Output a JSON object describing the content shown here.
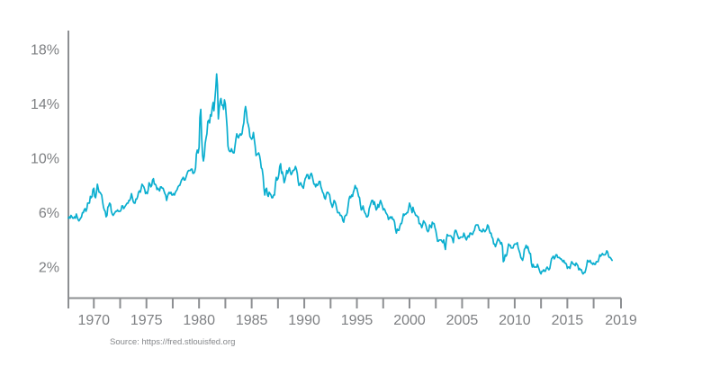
{
  "page": {
    "background": "#ffffff"
  },
  "chart_data": {
    "type": "line",
    "title": "",
    "xlabel": "",
    "ylabel": "",
    "grid": false,
    "legend": null,
    "source_text": "Source: https://fred.stlouisfed.org",
    "line_color": "#0aaecf",
    "axis_color": "#8d8f92",
    "label_color": "#7d7f82",
    "xlim": [
      1967.583,
      2020.1
    ],
    "ylim": [
      -0.28,
      19.39
    ],
    "yticks": [
      {
        "value": 18,
        "label": "18%"
      },
      {
        "value": 14,
        "label": "14%"
      },
      {
        "value": 10,
        "label": "10%"
      },
      {
        "value": 6,
        "label": "6%"
      },
      {
        "value": 2,
        "label": "2%"
      }
    ],
    "xticks": [
      {
        "year": 1967.583,
        "label": ""
      },
      {
        "year": 1970,
        "label": "1970"
      },
      {
        "year": 1972.5,
        "label": ""
      },
      {
        "year": 1975,
        "label": "1975"
      },
      {
        "year": 1977.5,
        "label": ""
      },
      {
        "year": 1980,
        "label": "1980"
      },
      {
        "year": 1982.5,
        "label": ""
      },
      {
        "year": 1985,
        "label": "1985"
      },
      {
        "year": 1987.5,
        "label": ""
      },
      {
        "year": 1990,
        "label": "1990"
      },
      {
        "year": 1992.5,
        "label": ""
      },
      {
        "year": 1995,
        "label": "1995"
      },
      {
        "year": 1997.5,
        "label": ""
      },
      {
        "year": 2000,
        "label": "2000"
      },
      {
        "year": 2002.5,
        "label": ""
      },
      {
        "year": 2005,
        "label": "2005"
      },
      {
        "year": 2007.5,
        "label": ""
      },
      {
        "year": 2010,
        "label": "2010"
      },
      {
        "year": 2012.5,
        "label": ""
      },
      {
        "year": 2015,
        "label": "2015"
      },
      {
        "year": 2017.5,
        "label": ""
      },
      {
        "year": 2020.1,
        "label": "2019"
      }
    ],
    "x_start": 1967.583,
    "x_step_years": 0.0833333,
    "unit": "percent",
    "values": [
      5.6,
      5.7,
      5.6,
      5.8,
      5.7,
      5.6,
      5.6,
      5.7,
      5.6,
      5.9,
      5.7,
      5.5,
      5.4,
      5.5,
      5.6,
      5.7,
      6.0,
      6.0,
      6.2,
      6.3,
      6.1,
      6.3,
      6.7,
      6.7,
      6.7,
      7.2,
      7.1,
      7.2,
      7.7,
      7.8,
      7.2,
      7.1,
      7.5,
      8.1,
      7.8,
      7.5,
      7.5,
      7.4,
      7.3,
      6.8,
      6.4,
      6.2,
      6.1,
      5.7,
      5.8,
      6.4,
      6.5,
      6.7,
      6.6,
      6.1,
      5.9,
      5.8,
      5.9,
      6.0,
      6.1,
      6.1,
      6.2,
      6.1,
      6.1,
      6.1,
      6.2,
      6.5,
      6.5,
      6.3,
      6.4,
      6.5,
      6.6,
      6.7,
      6.7,
      6.9,
      6.9,
      7.1,
      7.4,
      7.1,
      6.8,
      6.7,
      6.7,
      7.0,
      7.0,
      7.2,
      7.5,
      7.6,
      7.5,
      7.8,
      8.1,
      8.0,
      7.9,
      7.7,
      7.4,
      7.5,
      7.4,
      7.7,
      8.2,
      8.1,
      7.9,
      8.0,
      8.4,
      8.5,
      8.1,
      8.1,
      8.0,
      7.7,
      7.8,
      7.7,
      7.6,
      7.9,
      7.9,
      7.8,
      7.8,
      7.6,
      7.4,
      7.3,
      6.9,
      7.2,
      7.4,
      7.5,
      7.4,
      7.5,
      7.3,
      7.3,
      7.4,
      7.3,
      7.5,
      7.6,
      7.7,
      7.9,
      8.0,
      8.0,
      8.2,
      8.4,
      8.5,
      8.6,
      8.4,
      8.4,
      8.6,
      8.8,
      9.0,
      9.1,
      9.1,
      9.1,
      9.2,
      9.2,
      8.9,
      8.9,
      9.0,
      9.3,
      10.3,
      10.6,
      10.4,
      10.8,
      13.0,
      13.6,
      11.5,
      10.2,
      9.8,
      10.2,
      11.1,
      11.5,
      11.8,
      12.7,
      12.8,
      12.6,
      13.2,
      13.1,
      13.7,
      14.1,
      13.5,
      14.3,
      15.1,
      16.2,
      15.4,
      12.9,
      13.7,
      14.2,
      14.4,
      13.9,
      13.9,
      13.6,
      14.3,
      14.0,
      13.1,
      12.3,
      10.9,
      10.6,
      10.5,
      10.5,
      10.7,
      10.5,
      10.4,
      10.4,
      10.9,
      11.4,
      11.8,
      11.6,
      11.5,
      11.7,
      11.8,
      11.7,
      11.8,
      12.3,
      12.6,
      13.4,
      13.8,
      13.4,
      12.7,
      12.5,
      12.2,
      11.6,
      11.5,
      11.4,
      11.5,
      11.9,
      11.4,
      10.9,
      10.2,
      10.3,
      10.3,
      10.4,
      10.2,
      9.8,
      9.3,
      9.2,
      8.7,
      7.8,
      7.3,
      7.7,
      7.8,
      7.3,
      7.2,
      7.5,
      7.4,
      7.3,
      7.1,
      7.1,
      7.3,
      7.3,
      8.0,
      8.6,
      8.4,
      8.5,
      8.8,
      9.4,
      9.6,
      8.9,
      9.0,
      8.7,
      8.2,
      8.4,
      8.7,
      9.1,
      8.9,
      9.1,
      9.3,
      9.0,
      8.8,
      8.9,
      9.1,
      9.1,
      9.2,
      9.4,
      9.2,
      8.9,
      8.3,
      8.0,
      8.1,
      8.2,
      8.0,
      7.9,
      7.8,
      8.2,
      8.5,
      8.6,
      8.8,
      8.8,
      8.5,
      8.5,
      8.8,
      8.9,
      8.7,
      8.4,
      8.1,
      8.1,
      7.9,
      8.1,
      8.0,
      8.1,
      8.3,
      8.3,
      7.9,
      7.7,
      7.5,
      7.4,
      7.1,
      7.0,
      7.3,
      7.5,
      7.5,
      7.4,
      7.3,
      6.8,
      6.6,
      6.4,
      6.6,
      6.9,
      6.8,
      6.6,
      6.3,
      6.0,
      6.0,
      6.0,
      5.8,
      5.8,
      5.7,
      5.4,
      5.3,
      5.7,
      5.8,
      5.8,
      6.0,
      6.5,
      7.0,
      7.2,
      7.1,
      7.3,
      7.2,
      7.5,
      7.7,
      8.0,
      7.8,
      7.8,
      7.5,
      7.2,
      7.1,
      6.6,
      6.2,
      6.3,
      6.5,
      6.2,
      6.0,
      5.9,
      5.7,
      5.7,
      5.8,
      6.3,
      6.5,
      6.7,
      6.9,
      6.9,
      6.6,
      6.8,
      6.5,
      6.2,
      6.3,
      6.6,
      6.4,
      6.7,
      6.9,
      6.7,
      6.5,
      6.2,
      6.3,
      6.2,
      6.0,
      5.9,
      5.8,
      5.5,
      5.6,
      5.7,
      5.6,
      5.7,
      5.5,
      5.5,
      5.3,
      4.8,
      4.5,
      4.8,
      4.7,
      4.7,
      5.0,
      5.2,
      5.2,
      5.5,
      5.9,
      5.8,
      5.9,
      5.9,
      6.0,
      6.0,
      6.3,
      6.7,
      6.5,
      6.3,
      6.0,
      6.4,
      6.1,
      6.0,
      5.8,
      5.8,
      5.7,
      5.7,
      5.2,
      5.2,
      5.1,
      4.9,
      5.1,
      5.4,
      5.3,
      5.2,
      5.0,
      4.7,
      4.6,
      4.7,
      5.1,
      5.0,
      4.9,
      5.3,
      5.2,
      5.2,
      4.9,
      4.7,
      4.3,
      3.9,
      3.9,
      4.0,
      4.0,
      4.0,
      3.9,
      3.8,
      4.0,
      3.6,
      3.3,
      4.0,
      4.4,
      4.3,
      4.3,
      4.3,
      4.3,
      4.2,
      4.1,
      3.8,
      4.4,
      4.7,
      4.7,
      4.5,
      4.3,
      4.1,
      4.1,
      4.2,
      4.2,
      4.2,
      4.2,
      4.5,
      4.3,
      4.1,
      4.0,
      4.2,
      4.3,
      4.2,
      4.5,
      4.5,
      4.4,
      4.4,
      4.6,
      4.7,
      5.0,
      5.1,
      5.1,
      5.1,
      4.9,
      4.7,
      4.7,
      4.6,
      4.6,
      4.8,
      4.7,
      4.6,
      4.7,
      4.8,
      5.1,
      5.0,
      4.7,
      4.5,
      4.5,
      4.2,
      4.1,
      3.7,
      3.7,
      3.5,
      3.7,
      3.9,
      4.1,
      4.0,
      3.9,
      3.7,
      3.8,
      3.5,
      2.4,
      2.5,
      2.9,
      2.8,
      2.9,
      3.3,
      3.7,
      3.6,
      3.6,
      3.4,
      3.4,
      3.4,
      3.6,
      3.7,
      3.7,
      3.7,
      3.8,
      3.4,
      3.2,
      3.0,
      2.7,
      2.6,
      2.5,
      2.8,
      3.3,
      3.4,
      3.6,
      3.4,
      3.5,
      3.2,
      3.0,
      3.0,
      2.3,
      2.0,
      2.2,
      2.0,
      2.0,
      2.0,
      2.0,
      2.2,
      2.0,
      1.8,
      1.6,
      1.5,
      1.7,
      1.7,
      1.8,
      1.7,
      1.7,
      1.9,
      2.0,
      1.9,
      1.8,
      1.9,
      2.3,
      2.6,
      2.7,
      2.8,
      2.6,
      2.7,
      2.9,
      2.9,
      2.7,
      2.7,
      2.7,
      2.6,
      2.6,
      2.5,
      2.4,
      2.5,
      2.3,
      2.3,
      2.2,
      1.9,
      2.0,
      2.0,
      1.9,
      2.2,
      2.4,
      2.3,
      2.2,
      2.2,
      2.1,
      2.3,
      2.2,
      2.1,
      1.8,
      1.9,
      1.8,
      1.8,
      1.6,
      1.5,
      1.6,
      1.6,
      1.8,
      2.1,
      2.5,
      2.4,
      2.4,
      2.5,
      2.3,
      2.3,
      2.2,
      2.3,
      2.2,
      2.2,
      2.4,
      2.4,
      2.4,
      2.6,
      2.9,
      2.8,
      2.9,
      3.0,
      2.9,
      2.9,
      2.9,
      3.0,
      3.2,
      3.1,
      2.8,
      2.7,
      2.7,
      2.6,
      2.5
    ]
  }
}
